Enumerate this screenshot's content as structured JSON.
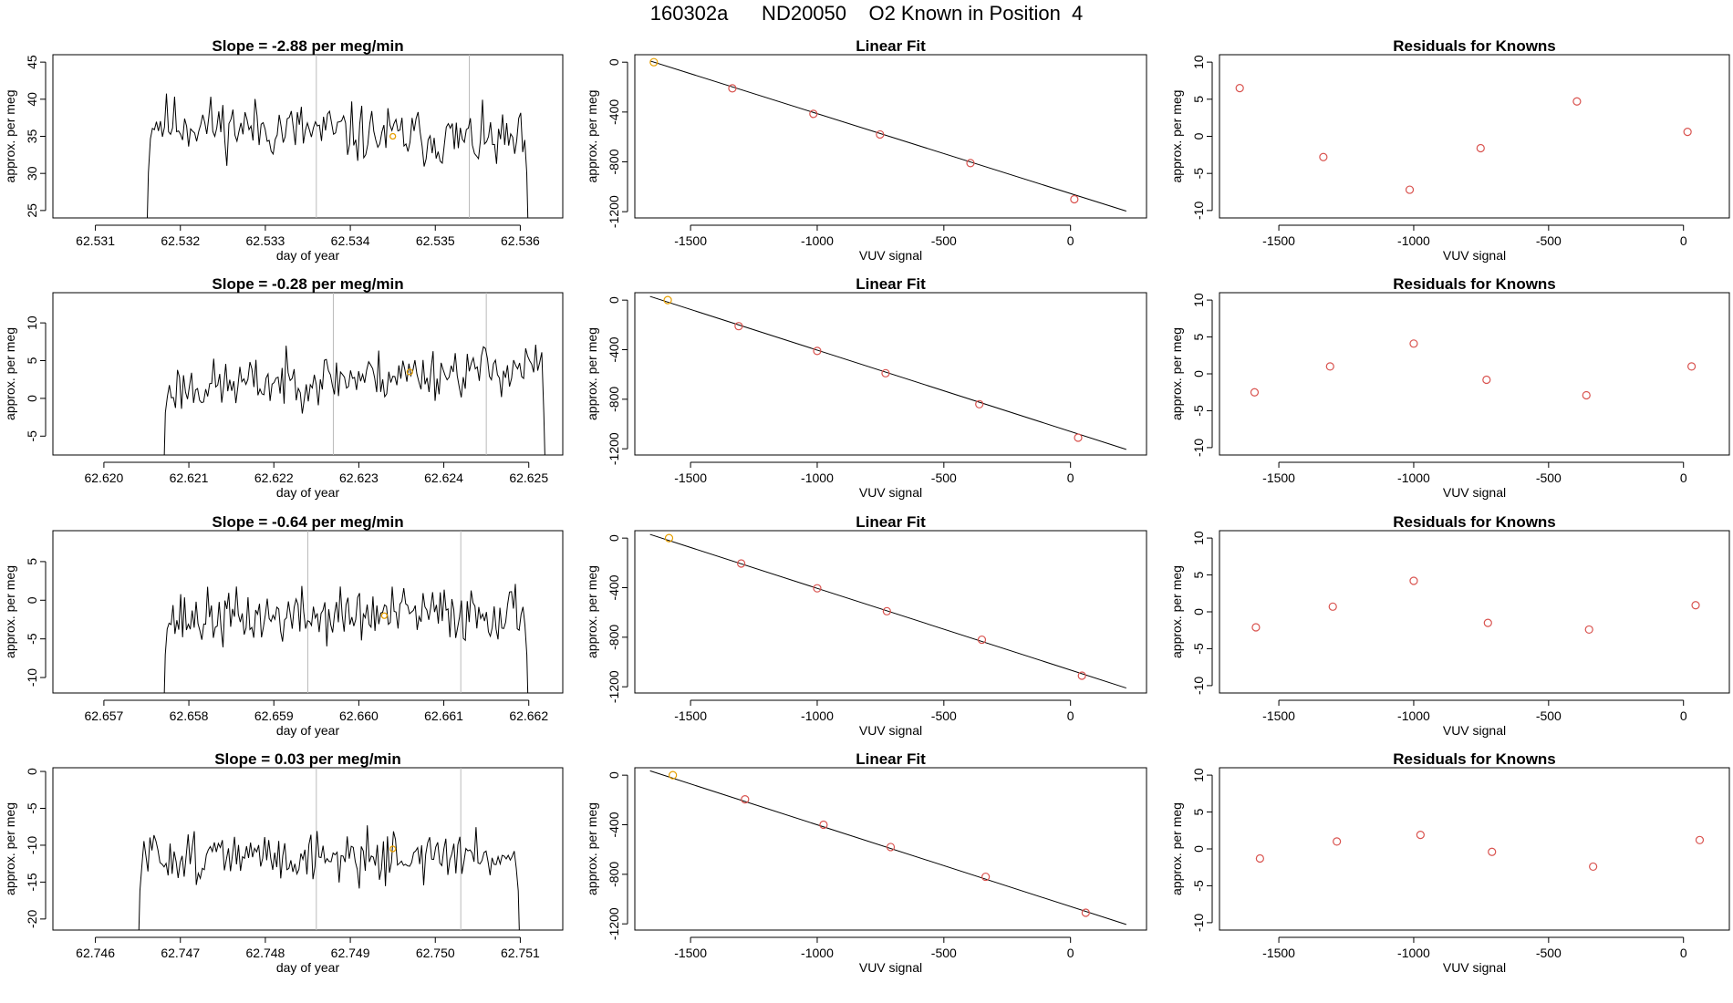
{
  "title": "160302a      ND20050    O2 Known in Position  4",
  "colors": {
    "line": "#000000",
    "point": "#d9534f",
    "highlight": "#e69f00",
    "vline": "#bbbbbb"
  },
  "chart_data": [
    {
      "row": 0,
      "panel": "timeseries",
      "type": "line",
      "title": "Slope =  -2.88  per meg/min",
      "xlabel": "day of year",
      "ylabel": "approx. per meg",
      "xlim": [
        62.5305,
        62.5365
      ],
      "ylim": [
        24,
        46
      ],
      "xticks": [
        62.531,
        62.532,
        62.533,
        62.534,
        62.535,
        62.536
      ],
      "xtick_labels": [
        "62.531",
        "62.532",
        "62.533",
        "62.534",
        "62.535",
        "62.536"
      ],
      "yticks": [
        25,
        30,
        35,
        40,
        45
      ],
      "ytick_labels": [
        "25",
        "30",
        "35",
        "40",
        "45"
      ],
      "x_start": 62.5316,
      "x_end": 62.5361,
      "mean": 35.5,
      "noise": 3.0,
      "seed": 11,
      "drift": -1.5,
      "vlines": [
        62.5336,
        62.5354
      ],
      "highlight": [
        62.5345,
        35
      ]
    },
    {
      "row": 0,
      "panel": "fit",
      "type": "scatter",
      "title": "Linear Fit",
      "xlabel": "VUV signal",
      "ylabel": "approx. per meg",
      "xlim": [
        -1720,
        300
      ],
      "ylim": [
        -1250,
        60
      ],
      "xticks": [
        -1500,
        -1000,
        -500,
        0
      ],
      "xtick_labels": [
        "-1500",
        "-1000",
        "-500",
        "0"
      ],
      "yticks": [
        0,
        -400,
        -800,
        -1200
      ],
      "ytick_labels": [
        "0",
        "-400",
        "-800",
        "-1200"
      ],
      "x": [
        -1645,
        -1335,
        -1015,
        -752,
        -395,
        15
      ],
      "y": [
        0,
        -210,
        -415,
        -580,
        -810,
        -1100
      ],
      "fit_line": [
        [
          -1660,
          10
        ],
        [
          220,
          -1195
        ]
      ],
      "highlight_index": 0
    },
    {
      "row": 0,
      "panel": "residuals",
      "type": "scatter",
      "title": "Residuals for Knowns",
      "xlabel": "VUV signal",
      "ylabel": "approx. per meg",
      "xlim": [
        -1720,
        170
      ],
      "ylim": [
        -11,
        11
      ],
      "xticks": [
        -1500,
        -1000,
        -500,
        0
      ],
      "xtick_labels": [
        "-1500",
        "-1000",
        "-500",
        "0"
      ],
      "yticks": [
        10,
        5,
        0,
        -5,
        -10
      ],
      "ytick_labels": [
        "10",
        "5",
        "0",
        "-5",
        "-10"
      ],
      "x": [
        -1645,
        -1335,
        -1015,
        -752,
        -395,
        15
      ],
      "y": [
        6.5,
        -2.8,
        -7.2,
        -1.6,
        4.7,
        0.6
      ]
    },
    {
      "row": 1,
      "panel": "timeseries",
      "type": "line",
      "title": "Slope =  -0.28  per meg/min",
      "xlabel": "day of year",
      "ylabel": "approx. per meg",
      "xlim": [
        62.6194,
        62.6254
      ],
      "ylim": [
        -7.5,
        14
      ],
      "xticks": [
        62.62,
        62.621,
        62.622,
        62.623,
        62.624,
        62.625
      ],
      "xtick_labels": [
        "62.620",
        "62.621",
        "62.622",
        "62.623",
        "62.624",
        "62.625"
      ],
      "yticks": [
        -5,
        0,
        5,
        10
      ],
      "ytick_labels": [
        "-5",
        "0",
        "5",
        "10"
      ],
      "x_start": 62.6207,
      "x_end": 62.6252,
      "mean": 2.8,
      "noise": 2.6,
      "seed": 23,
      "drift": 1.5,
      "vlines": [
        62.6227,
        62.6245
      ],
      "highlight": [
        62.6236,
        3.5
      ]
    },
    {
      "row": 1,
      "panel": "fit",
      "type": "scatter",
      "title": "Linear Fit",
      "xlabel": "VUV signal",
      "ylabel": "approx. per meg",
      "xlim": [
        -1720,
        300
      ],
      "ylim": [
        -1250,
        60
      ],
      "xticks": [
        -1500,
        -1000,
        -500,
        0
      ],
      "xtick_labels": [
        "-1500",
        "-1000",
        "-500",
        "0"
      ],
      "yticks": [
        0,
        -400,
        -800,
        -1200
      ],
      "ytick_labels": [
        "0",
        "-400",
        "-800",
        "-1200"
      ],
      "x": [
        -1590,
        -1310,
        -1000,
        -730,
        -360,
        30
      ],
      "y": [
        0,
        -210,
        -410,
        -590,
        -840,
        -1110
      ],
      "fit_line": [
        [
          -1660,
          30
        ],
        [
          220,
          -1205
        ]
      ],
      "highlight_index": 0
    },
    {
      "row": 1,
      "panel": "residuals",
      "type": "scatter",
      "title": "Residuals for Knowns",
      "xlabel": "VUV signal",
      "ylabel": "approx. per meg",
      "xlim": [
        -1720,
        170
      ],
      "ylim": [
        -11,
        11
      ],
      "xticks": [
        -1500,
        -1000,
        -500,
        0
      ],
      "xtick_labels": [
        "-1500",
        "-1000",
        "-500",
        "0"
      ],
      "yticks": [
        10,
        5,
        0,
        -5,
        -10
      ],
      "ytick_labels": [
        "10",
        "5",
        "0",
        "-5",
        "-10"
      ],
      "x": [
        -1590,
        -1310,
        -1000,
        -730,
        -360,
        30
      ],
      "y": [
        -2.5,
        1.0,
        4.1,
        -0.8,
        -2.9,
        1.0
      ]
    },
    {
      "row": 2,
      "panel": "timeseries",
      "type": "line",
      "title": "Slope =  -0.64  per meg/min",
      "xlabel": "day of year",
      "ylabel": "approx. per meg",
      "xlim": [
        62.6564,
        62.6624
      ],
      "ylim": [
        -12,
        9
      ],
      "xticks": [
        62.657,
        62.658,
        62.659,
        62.66,
        62.661,
        62.662
      ],
      "xtick_labels": [
        "62.657",
        "62.658",
        "62.659",
        "62.660",
        "62.661",
        "62.662"
      ],
      "yticks": [
        -10,
        -5,
        0,
        5
      ],
      "ytick_labels": [
        "-10",
        "-5",
        "0",
        "5"
      ],
      "x_start": 62.6577,
      "x_end": 62.662,
      "mean": -2.0,
      "noise": 2.8,
      "seed": 37,
      "drift": 0.5,
      "vlines": [
        62.6594,
        62.6612
      ],
      "highlight": [
        62.6603,
        -2
      ]
    },
    {
      "row": 2,
      "panel": "fit",
      "type": "scatter",
      "title": "Linear Fit",
      "xlabel": "VUV signal",
      "ylabel": "approx. per meg",
      "xlim": [
        -1720,
        300
      ],
      "ylim": [
        -1250,
        60
      ],
      "xticks": [
        -1500,
        -1000,
        -500,
        0
      ],
      "xtick_labels": [
        "-1500",
        "-1000",
        "-500",
        "0"
      ],
      "yticks": [
        0,
        -400,
        -800,
        -1200
      ],
      "ytick_labels": [
        "0",
        "-400",
        "-800",
        "-1200"
      ],
      "x": [
        -1585,
        -1300,
        -1000,
        -725,
        -350,
        45
      ],
      "y": [
        0,
        -205,
        -405,
        -590,
        -820,
        -1110
      ],
      "fit_line": [
        [
          -1660,
          30
        ],
        [
          220,
          -1210
        ]
      ],
      "highlight_index": 0
    },
    {
      "row": 2,
      "panel": "residuals",
      "type": "scatter",
      "title": "Residuals for Knowns",
      "xlabel": "VUV signal",
      "ylabel": "approx. per meg",
      "xlim": [
        -1720,
        170
      ],
      "ylim": [
        -11,
        11
      ],
      "xticks": [
        -1500,
        -1000,
        -500,
        0
      ],
      "xtick_labels": [
        "-1500",
        "-1000",
        "-500",
        "0"
      ],
      "yticks": [
        10,
        5,
        0,
        -5,
        -10
      ],
      "ytick_labels": [
        "10",
        "5",
        "0",
        "-5",
        "-10"
      ],
      "x": [
        -1585,
        -1300,
        -1000,
        -725,
        -350,
        45
      ],
      "y": [
        -2.1,
        0.7,
        4.2,
        -1.5,
        -2.4,
        0.9
      ]
    },
    {
      "row": 3,
      "panel": "timeseries",
      "type": "line",
      "title": "Slope =  0.03  per meg/min",
      "xlabel": "day of year",
      "ylabel": "approx. per meg",
      "xlim": [
        62.7455,
        62.7515
      ],
      "ylim": [
        -21.5,
        0.5
      ],
      "xticks": [
        62.746,
        62.747,
        62.748,
        62.749,
        62.75,
        62.751
      ],
      "xtick_labels": [
        "62.746",
        "62.747",
        "62.748",
        "62.749",
        "62.750",
        "62.751"
      ],
      "yticks": [
        0,
        -5,
        -10,
        -15,
        -20
      ],
      "ytick_labels": [
        "0",
        "-5",
        "-10",
        "-15",
        "-20"
      ],
      "x_start": 62.7465,
      "x_end": 62.751,
      "mean": -11.5,
      "noise": 2.6,
      "seed": 51,
      "drift": 0.0,
      "vlines": [
        62.7486,
        62.7503
      ],
      "highlight": [
        62.7495,
        -10.5
      ]
    },
    {
      "row": 3,
      "panel": "fit",
      "type": "scatter",
      "title": "Linear Fit",
      "xlabel": "VUV signal",
      "ylabel": "approx. per meg",
      "xlim": [
        -1720,
        300
      ],
      "ylim": [
        -1250,
        60
      ],
      "xticks": [
        -1500,
        -1000,
        -500,
        0
      ],
      "xtick_labels": [
        "-1500",
        "-1000",
        "-500",
        "0"
      ],
      "yticks": [
        0,
        -400,
        -800,
        -1200
      ],
      "ytick_labels": [
        "0",
        "-400",
        "-800",
        "-1200"
      ],
      "x": [
        -1570,
        -1285,
        -975,
        -710,
        -335,
        60
      ],
      "y": [
        0,
        -195,
        -400,
        -580,
        -820,
        -1110
      ],
      "fit_line": [
        [
          -1660,
          35
        ],
        [
          220,
          -1205
        ]
      ],
      "highlight_index": 0
    },
    {
      "row": 3,
      "panel": "residuals",
      "type": "scatter",
      "title": "Residuals for Knowns",
      "xlabel": "VUV signal",
      "ylabel": "approx. per meg",
      "xlim": [
        -1720,
        170
      ],
      "ylim": [
        -11,
        11
      ],
      "xticks": [
        -1500,
        -1000,
        -500,
        0
      ],
      "xtick_labels": [
        "-1500",
        "-1000",
        "-500",
        "0"
      ],
      "yticks": [
        10,
        5,
        0,
        -5,
        -10
      ],
      "ytick_labels": [
        "10",
        "5",
        "0",
        "-5",
        "-10"
      ],
      "x": [
        -1570,
        -1285,
        -975,
        -710,
        -335,
        60
      ],
      "y": [
        -1.3,
        1.0,
        1.9,
        -0.4,
        -2.4,
        1.2
      ]
    }
  ]
}
